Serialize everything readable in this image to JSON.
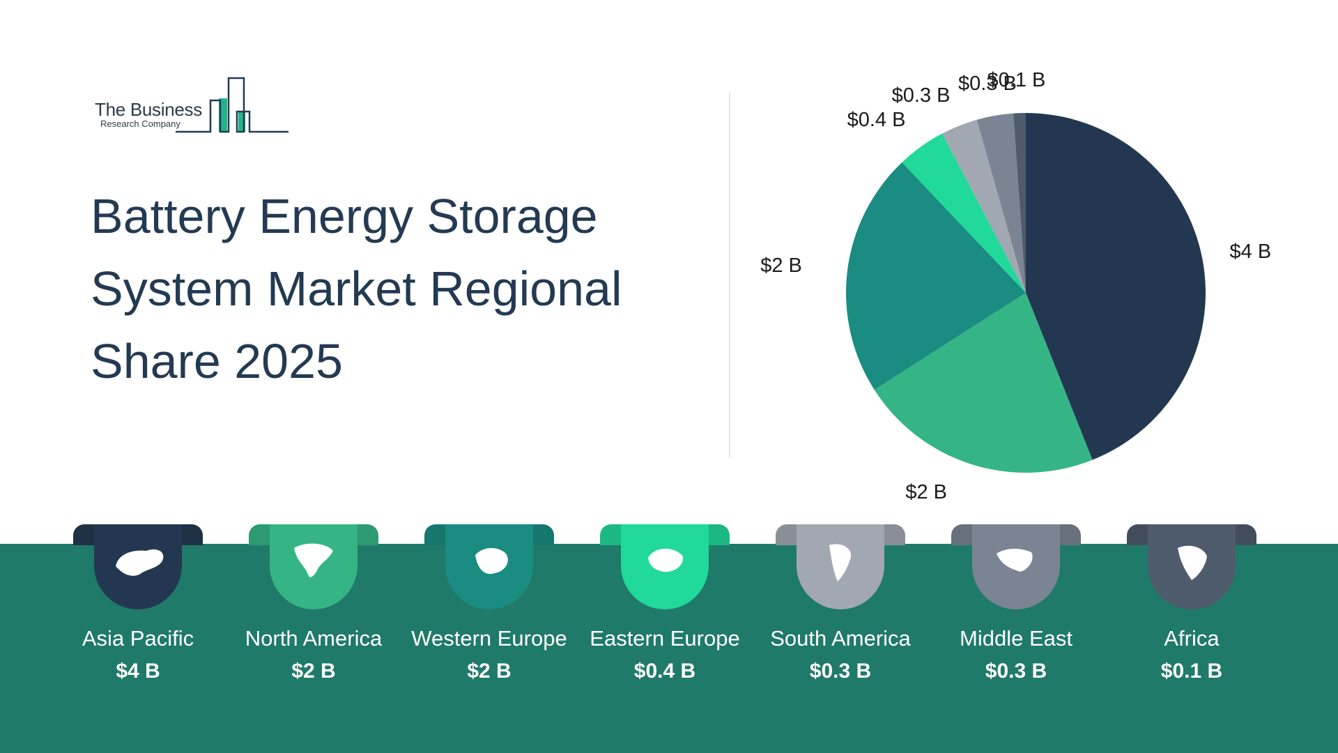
{
  "logo": {
    "line1": "The Business",
    "line2": "Research Company"
  },
  "title": "Battery Energy Storage System Market Regional Share 2025",
  "colors": {
    "band": "#207a69",
    "asia_pacific": "#233850",
    "north_america": "#35b585",
    "western_europe": "#1a8c82",
    "eastern_europe": "#20d99a",
    "south_america": "#a2a8b2",
    "middle_east": "#7a8492",
    "africa": "#4e5b6c"
  },
  "chart_data": {
    "type": "pie",
    "categories": [
      "Asia Pacific",
      "North America",
      "Western Europe",
      "Eastern Europe",
      "South America",
      "Middle East",
      "Africa"
    ],
    "values": [
      4,
      2,
      2,
      0.4,
      0.3,
      0.3,
      0.1
    ],
    "labels": [
      "$4 B",
      "$2 B",
      "$2 B",
      "$0.4 B",
      "$0.3 B",
      "$0.3 B",
      "$0.1 B"
    ],
    "colors": [
      "#233850",
      "#35b585",
      "#1a8c82",
      "#20d99a",
      "#a2a8b2",
      "#7a8492",
      "#4e5b6c"
    ]
  },
  "regions": [
    {
      "name": "Asia Pacific",
      "value": "$4 B",
      "icon": "asia-map-icon"
    },
    {
      "name": "North America",
      "value": "$2 B",
      "icon": "north-america-map-icon"
    },
    {
      "name": "Western Europe",
      "value": "$2 B",
      "icon": "western-europe-map-icon"
    },
    {
      "name": "Eastern Europe",
      "value": "$0.4 B",
      "icon": "eastern-europe-map-icon"
    },
    {
      "name": "South America",
      "value": "$0.3 B",
      "icon": "south-america-map-icon"
    },
    {
      "name": "Middle East",
      "value": "$0.3 B",
      "icon": "middle-east-map-icon"
    },
    {
      "name": "Africa",
      "value": "$0.1 B",
      "icon": "africa-map-icon"
    }
  ]
}
